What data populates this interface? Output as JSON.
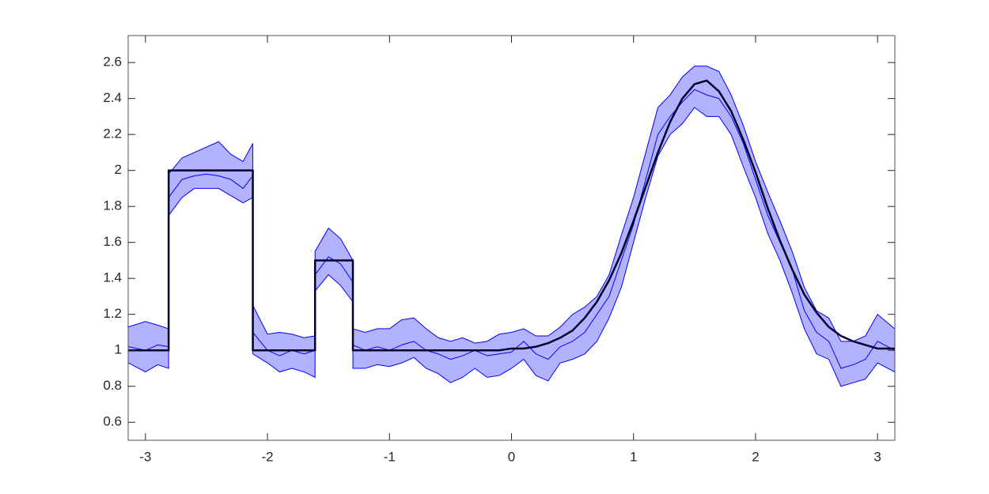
{
  "chart_data": {
    "type": "line",
    "x": [
      -3.14,
      -3.0,
      -2.9,
      -2.81,
      -2.81,
      -2.7,
      -2.6,
      -2.5,
      -2.4,
      -2.3,
      -2.2,
      -2.12,
      -2.12,
      -2.0,
      -1.9,
      -1.8,
      -1.7,
      -1.61,
      -1.61,
      -1.5,
      -1.4,
      -1.3,
      -1.3,
      -1.2,
      -1.1,
      -1.0,
      -0.9,
      -0.8,
      -0.7,
      -0.6,
      -0.5,
      -0.4,
      -0.3,
      -0.2,
      -0.1,
      0,
      0.1,
      0.2,
      0.3,
      0.4,
      0.5,
      0.6,
      0.7,
      0.8,
      0.9,
      1.0,
      1.1,
      1.2,
      1.3,
      1.4,
      1.5,
      1.6,
      1.7,
      1.8,
      1.9,
      2.0,
      2.1,
      2.2,
      2.3,
      2.4,
      2.5,
      2.6,
      2.7,
      2.8,
      2.9,
      3.0,
      3.14
    ],
    "series": [
      {
        "type": "band",
        "color": "#0000ff",
        "upper": [
          1.13,
          1.16,
          1.14,
          1.12,
          1.98,
          2.07,
          2.1,
          2.13,
          2.16,
          2.09,
          2.05,
          2.15,
          1.25,
          1.09,
          1.1,
          1.09,
          1.07,
          1.08,
          1.55,
          1.68,
          1.62,
          1.5,
          1.12,
          1.1,
          1.12,
          1.12,
          1.17,
          1.18,
          1.12,
          1.07,
          1.05,
          1.07,
          1.04,
          1.05,
          1.09,
          1.1,
          1.12,
          1.08,
          1.08,
          1.13,
          1.2,
          1.24,
          1.3,
          1.42,
          1.64,
          1.85,
          2.1,
          2.35,
          2.42,
          2.52,
          2.58,
          2.58,
          2.55,
          2.42,
          2.25,
          2.05,
          1.88,
          1.72,
          1.55,
          1.35,
          1.22,
          1.18,
          1.05,
          1.05,
          1.08,
          1.2,
          1.12
        ],
        "lower": [
          0.93,
          0.88,
          0.92,
          0.9,
          1.75,
          1.85,
          1.9,
          1.9,
          1.9,
          1.86,
          1.82,
          1.85,
          0.98,
          0.93,
          0.88,
          0.9,
          0.88,
          0.85,
          1.33,
          1.42,
          1.36,
          1.27,
          0.9,
          0.9,
          0.92,
          0.91,
          0.93,
          0.96,
          0.9,
          0.87,
          0.82,
          0.85,
          0.9,
          0.85,
          0.86,
          0.9,
          0.95,
          0.86,
          0.83,
          0.93,
          0.95,
          0.98,
          1.05,
          1.18,
          1.35,
          1.6,
          1.85,
          2.08,
          2.2,
          2.26,
          2.35,
          2.3,
          2.3,
          2.2,
          2.02,
          1.85,
          1.65,
          1.5,
          1.32,
          1.12,
          0.98,
          0.95,
          0.8,
          0.82,
          0.84,
          0.93,
          0.88
        ]
      },
      {
        "type": "line",
        "color": "#0000ff",
        "values": [
          1.02,
          1.0,
          1.03,
          1.02,
          1.85,
          1.95,
          1.97,
          1.98,
          1.97,
          1.95,
          1.9,
          1.97,
          1.1,
          1.0,
          0.97,
          1.0,
          0.98,
          1.0,
          1.42,
          1.52,
          1.48,
          1.38,
          1.03,
          1.0,
          1.02,
          1.0,
          1.03,
          1.05,
          1.0,
          0.98,
          0.95,
          0.97,
          1.0,
          0.97,
          0.98,
          0.99,
          1.05,
          0.98,
          0.95,
          1.02,
          1.05,
          1.1,
          1.2,
          1.3,
          1.5,
          1.7,
          1.95,
          2.2,
          2.3,
          2.38,
          2.45,
          2.42,
          2.4,
          2.3,
          2.15,
          1.95,
          1.75,
          1.6,
          1.45,
          1.22,
          1.1,
          1.05,
          0.9,
          0.92,
          0.95,
          1.05,
          1.0
        ]
      },
      {
        "type": "line",
        "color": "#00002a",
        "line_width": 2.5,
        "values": [
          1,
          1,
          1,
          1,
          2,
          2,
          2,
          2,
          2,
          2,
          2,
          2,
          1,
          1,
          1,
          1,
          1,
          1,
          1.5,
          1.5,
          1.5,
          1.5,
          1,
          1,
          1,
          1,
          1,
          1,
          1,
          1,
          1,
          1,
          1,
          1,
          1,
          1.01,
          1.01,
          1.02,
          1.04,
          1.07,
          1.11,
          1.18,
          1.27,
          1.39,
          1.54,
          1.72,
          1.91,
          2.1,
          2.27,
          2.4,
          2.48,
          2.5,
          2.44,
          2.33,
          2.17,
          1.99,
          1.79,
          1.61,
          1.45,
          1.31,
          1.21,
          1.13,
          1.08,
          1.05,
          1.03,
          1.01,
          1.01
        ]
      }
    ],
    "xlim": [
      -3.1416,
      3.1416
    ],
    "ylim": [
      0.5,
      2.75
    ],
    "xticks": [
      -3,
      -2,
      -1,
      0,
      1,
      2,
      3
    ],
    "yticks": [
      0.6,
      0.8,
      1,
      1.2,
      1.4,
      1.6,
      1.8,
      2,
      2.2,
      2.4,
      2.6
    ],
    "grid": false
  }
}
